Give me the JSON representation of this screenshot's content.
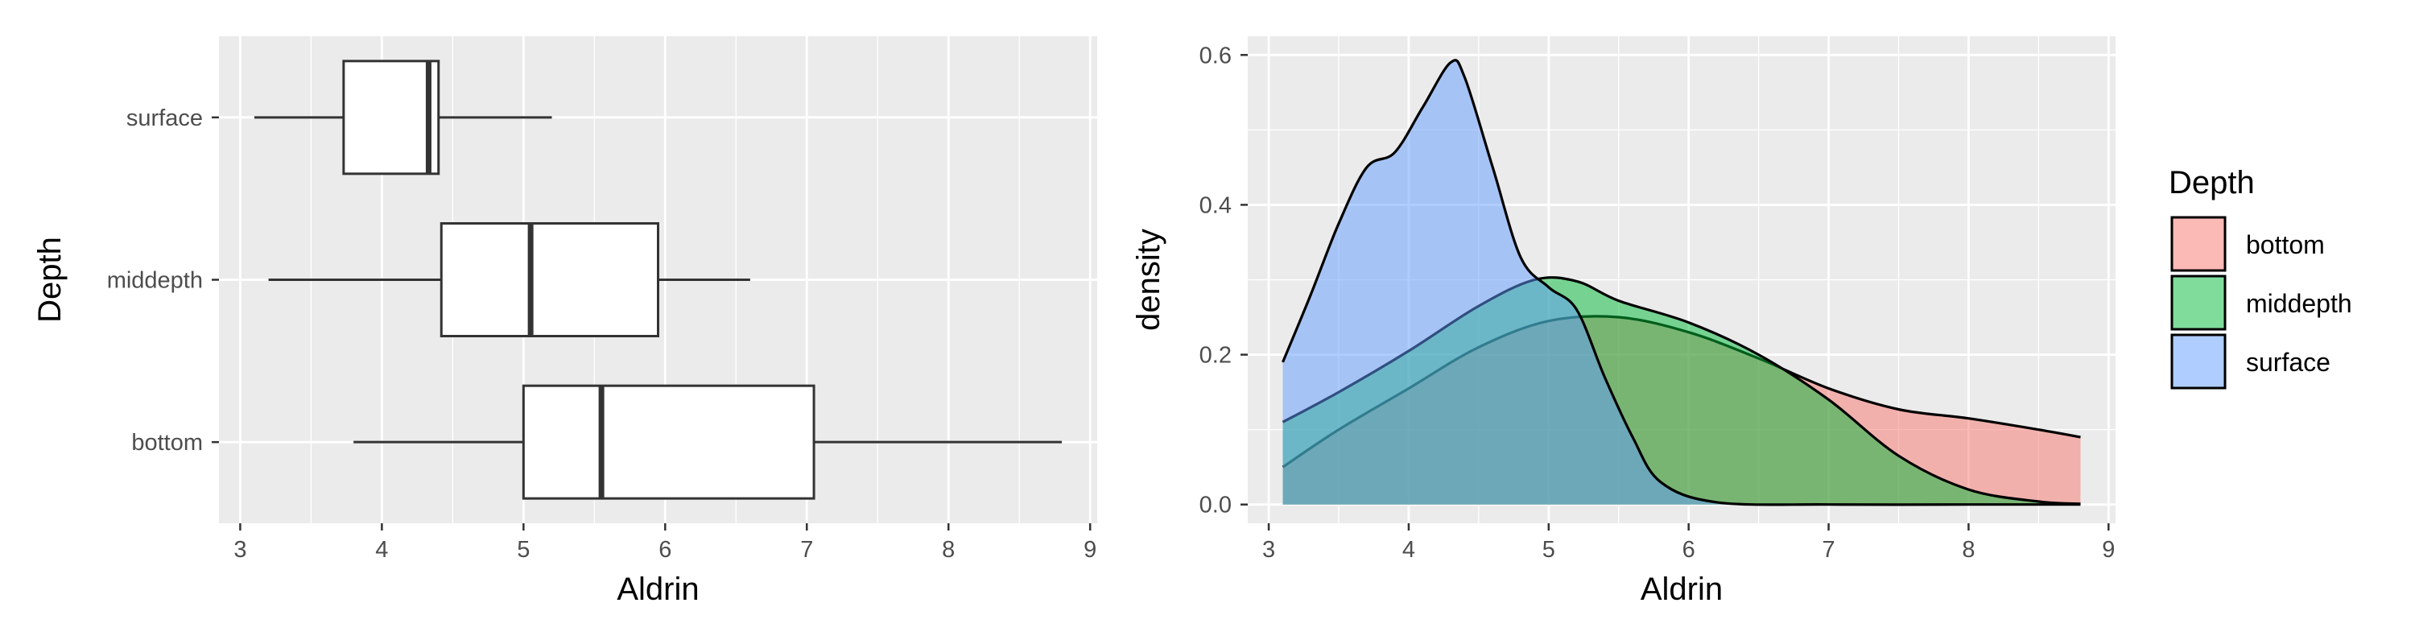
{
  "chart_data": [
    {
      "type": "boxplot",
      "xlabel": "Aldrin",
      "ylabel": "Depth",
      "xlim": [
        2.85,
        9.05
      ],
      "x_ticks": [
        3,
        4,
        5,
        6,
        7,
        8,
        9
      ],
      "categories": [
        "surface",
        "middepth",
        "bottom"
      ],
      "grid": true,
      "boxes": [
        {
          "category": "surface",
          "min": 3.1,
          "q1": 3.73,
          "median": 4.33,
          "q3": 4.4,
          "max": 5.2
        },
        {
          "category": "middepth",
          "min": 3.2,
          "q1": 4.42,
          "median": 5.05,
          "q3": 5.95,
          "max": 6.6
        },
        {
          "category": "bottom",
          "min": 3.8,
          "q1": 5.0,
          "median": 5.55,
          "q3": 7.05,
          "max": 8.8
        }
      ]
    },
    {
      "type": "area",
      "xlabel": "Aldrin",
      "ylabel": "density",
      "xlim": [
        2.85,
        9.05
      ],
      "ylim": [
        -0.025,
        0.625
      ],
      "x_ticks": [
        3,
        4,
        5,
        6,
        7,
        8,
        9
      ],
      "y_ticks": [
        0.0,
        0.2,
        0.4,
        0.6
      ],
      "y_tick_labels": [
        "0.0",
        "0.2",
        "0.4",
        "0.6"
      ],
      "grid": true,
      "legend": {
        "title": "Depth",
        "placement": "right"
      },
      "series": [
        {
          "name": "bottom",
          "color": "#F8766D",
          "x": [
            3.1,
            3.5,
            4.0,
            4.5,
            5.0,
            5.5,
            6.0,
            6.5,
            7.0,
            7.5,
            8.0,
            8.5,
            8.8
          ],
          "y": [
            0.05,
            0.1,
            0.155,
            0.21,
            0.245,
            0.25,
            0.23,
            0.195,
            0.155,
            0.127,
            0.115,
            0.1,
            0.09
          ]
        },
        {
          "name": "middepth",
          "color": "#00BA38",
          "x": [
            3.1,
            3.5,
            4.0,
            4.5,
            4.9,
            5.2,
            5.5,
            6.0,
            6.5,
            7.0,
            7.5,
            8.0,
            8.5,
            8.8
          ],
          "y": [
            0.11,
            0.15,
            0.205,
            0.265,
            0.3,
            0.298,
            0.272,
            0.243,
            0.2,
            0.14,
            0.065,
            0.02,
            0.004,
            0.001
          ]
        },
        {
          "name": "surface",
          "color": "#619CFF",
          "x": [
            3.1,
            3.3,
            3.5,
            3.7,
            3.9,
            4.1,
            4.3,
            4.4,
            4.6,
            4.8,
            5.0,
            5.2,
            5.4,
            5.6,
            5.8,
            6.2,
            7.0,
            8.0,
            8.8
          ],
          "y": [
            0.19,
            0.28,
            0.375,
            0.45,
            0.47,
            0.53,
            0.59,
            0.57,
            0.45,
            0.33,
            0.29,
            0.26,
            0.17,
            0.09,
            0.03,
            0.003,
            0.0,
            0.0,
            0.0
          ]
        }
      ]
    }
  ]
}
